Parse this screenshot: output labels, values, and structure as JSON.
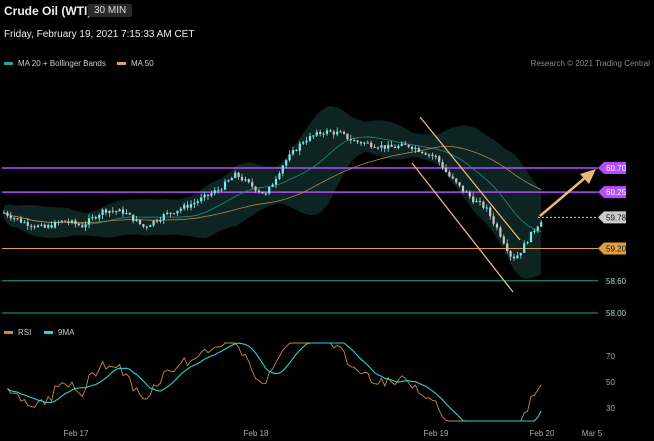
{
  "header": {
    "title": "Crude Oil (WTI)",
    "interval": "30 MIN",
    "datetime": "Friday, February 19, 2021 7:15:33 AM CET"
  },
  "legends": {
    "price": [
      {
        "label": "MA 20 + Bollinger Bands",
        "color": "#1fa8a0"
      },
      {
        "label": "MA 50",
        "color": "#e0a060"
      }
    ],
    "rsi": [
      {
        "label": "RSI",
        "color": "#c98a3a"
      },
      {
        "label": "9MA",
        "color": "#2ed0d8"
      }
    ]
  },
  "credit": "Research © 2021 Trading Central",
  "colors": {
    "resistance": "#b44dff",
    "support_primary": "#e0a040",
    "support_secondary": "#1fa890",
    "current_price": "#cccccc",
    "bull_candle": "#7ee8e8",
    "bear_candle": "#c8c8c8",
    "arrow": "#e8b878",
    "channel": "#e8b878"
  },
  "chart_data": [
    {
      "type": "candlestick",
      "title": "Crude Oil (WTI)",
      "interval": "30 MIN",
      "y_axis_side": "right",
      "ylim": [
        57.7,
        61.6
      ],
      "x_tick_labels": [
        "Feb 17",
        "Feb 18",
        "Feb 19",
        "Feb 20",
        "Mar 5"
      ],
      "price_levels": [
        {
          "value": 60.7,
          "label": "60.70",
          "kind": "resistance"
        },
        {
          "value": 60.25,
          "label": "60.25",
          "kind": "resistance"
        },
        {
          "value": 59.78,
          "label": "59.78",
          "kind": "current"
        },
        {
          "value": 59.2,
          "label": "59.20",
          "kind": "support"
        },
        {
          "value": 58.6,
          "label": "58.60",
          "kind": "support"
        },
        {
          "value": 58.0,
          "label": "58.00",
          "kind": "support"
        }
      ],
      "series": [
        {
          "name": "MA 20 + Bollinger Bands"
        },
        {
          "name": "MA 50"
        }
      ],
      "annotations": [
        "descending channel from Feb 18 high to Feb 19 low",
        "upward arrow projecting toward 60.70"
      ]
    },
    {
      "type": "line",
      "ylim": [
        20,
        80
      ],
      "y_ticks": [
        70,
        50,
        30
      ],
      "series": [
        {
          "name": "RSI"
        },
        {
          "name": "9MA"
        }
      ]
    }
  ]
}
